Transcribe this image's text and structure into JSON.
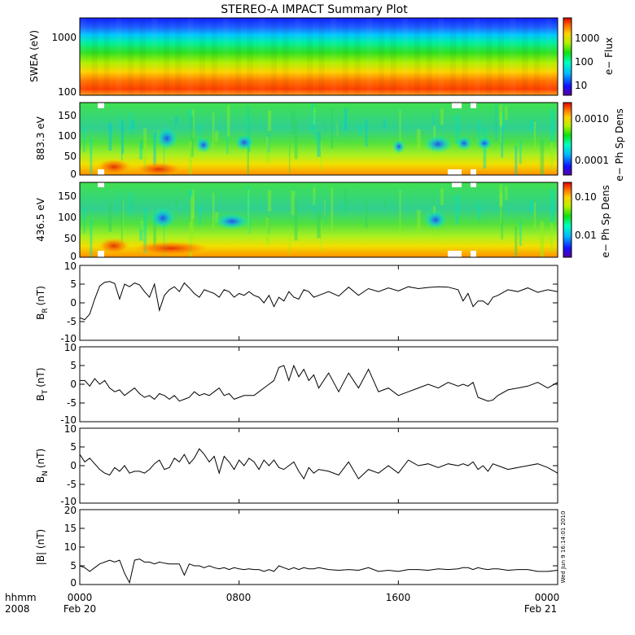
{
  "title": "STEREO-A IMPACT Summary Plot",
  "footer": {
    "hhmm_label": "hhmm",
    "year_label": "2008",
    "x_ticks": [
      "0000",
      "0800",
      "1600",
      "0000"
    ],
    "x_dates": [
      "Feb 20",
      "Feb 21"
    ]
  },
  "timestamp": "Wed Jun  9 16:14:01 2010",
  "chart_data": [
    {
      "type": "heatmap",
      "id": "swea",
      "ylabel": "SWEA (eV)",
      "yscale": "log",
      "ylim": [
        90,
        2200
      ],
      "yticks": [
        "1000",
        "100"
      ],
      "cbar_label": "e− Flux",
      "cbar_ticks": [
        "1000",
        "100",
        "10"
      ],
      "cbar_scale": "log",
      "grid": false
    },
    {
      "type": "heatmap",
      "id": "pad883",
      "ylabel": "883.3 eV",
      "ylim": [
        0,
        180
      ],
      "yticks": [
        "150",
        "100",
        "50",
        "0"
      ],
      "cbar_label": "e− Ph Sp Dens",
      "cbar_ticks": [
        "0.0010",
        "0.0001"
      ],
      "cbar_scale": "log",
      "grid": false
    },
    {
      "type": "heatmap",
      "id": "pad436",
      "ylabel": "436.5 eV",
      "ylim": [
        0,
        180
      ],
      "yticks": [
        "150",
        "100",
        "50",
        "0"
      ],
      "cbar_label": "e− Ph Sp Dens",
      "cbar_ticks": [
        "0.10",
        "0.01"
      ],
      "cbar_scale": "log",
      "grid": false
    },
    {
      "type": "line",
      "id": "br",
      "ylabel": "B",
      "ylabel_sub": "R",
      "ylabel_unit": "(nT)",
      "ylim": [
        -10,
        10
      ],
      "yticks": [
        "10",
        "5",
        "0",
        "-5",
        "-10"
      ],
      "x_hours": [
        0,
        0.25,
        0.5,
        0.75,
        1,
        1.25,
        1.5,
        1.75,
        2,
        2.25,
        2.5,
        2.75,
        3,
        3.25,
        3.5,
        3.75,
        4,
        4.25,
        4.5,
        4.75,
        5,
        5.25,
        5.5,
        5.75,
        6,
        6.25,
        6.5,
        6.75,
        7,
        7.25,
        7.5,
        7.75,
        8,
        8.25,
        8.5,
        8.75,
        9,
        9.25,
        9.5,
        9.75,
        10,
        10.25,
        10.5,
        10.75,
        11,
        11.25,
        11.5,
        11.75,
        12,
        12.5,
        13,
        13.5,
        14,
        14.5,
        15,
        15.5,
        16,
        16.5,
        17,
        17.5,
        18,
        18.5,
        19,
        19.25,
        19.5,
        19.75,
        20,
        20.25,
        20.5,
        20.75,
        21,
        21.5,
        22,
        22.5,
        23,
        23.5,
        24
      ],
      "values": [
        -4,
        -4.5,
        -3,
        1,
        4.5,
        5.5,
        5.7,
        5.2,
        1,
        5,
        4.3,
        5.3,
        4.8,
        3,
        1.5,
        5,
        -2,
        2,
        3.5,
        4.3,
        3,
        5.3,
        4,
        2.5,
        1.5,
        3.5,
        3,
        2.5,
        1.5,
        3.5,
        3,
        1.5,
        2.5,
        2,
        3,
        2,
        1.5,
        0,
        2,
        -1,
        1.5,
        0.5,
        3,
        1.5,
        1,
        3.5,
        3,
        1.5,
        2,
        3,
        1.8,
        4.2,
        2,
        3.8,
        3,
        4,
        3.2,
        4.3,
        3.8,
        4.1,
        4.3,
        4.2,
        3.5,
        0.5,
        2.5,
        -1,
        0.5,
        0.5,
        -0.5,
        1.5,
        2,
        3.5,
        3,
        4,
        2.8,
        3.5,
        3
      ]
    },
    {
      "type": "line",
      "id": "bt",
      "ylabel": "B",
      "ylabel_sub": "T",
      "ylabel_unit": "(nT)",
      "ylim": [
        -10,
        10
      ],
      "yticks": [
        "10",
        "5",
        "0",
        "-5",
        "-10"
      ],
      "x_hours": [
        0,
        0.25,
        0.5,
        0.75,
        1,
        1.25,
        1.5,
        1.75,
        2,
        2.25,
        2.5,
        2.75,
        3,
        3.25,
        3.5,
        3.75,
        4,
        4.25,
        4.5,
        4.75,
        5,
        5.25,
        5.5,
        5.75,
        6,
        6.25,
        6.5,
        6.75,
        7,
        7.25,
        7.5,
        7.75,
        8,
        8.25,
        8.5,
        8.75,
        9,
        9.25,
        9.5,
        9.75,
        10,
        10.25,
        10.5,
        10.75,
        11,
        11.25,
        11.5,
        11.75,
        12,
        12.5,
        13,
        13.5,
        14,
        14.5,
        15,
        15.5,
        16,
        16.5,
        17,
        17.5,
        18,
        18.5,
        19,
        19.25,
        19.5,
        19.75,
        20,
        20.25,
        20.5,
        20.75,
        21,
        21.5,
        22,
        22.5,
        23,
        23.5,
        24
      ],
      "values": [
        1,
        1,
        -0.5,
        1.5,
        0,
        1,
        -1,
        -2,
        -1.5,
        -3,
        -2,
        -1,
        -2.5,
        -3.5,
        -3,
        -4,
        -2.5,
        -3,
        -4,
        -3,
        -4.5,
        -4,
        -3.5,
        -2,
        -3,
        -2.5,
        -3,
        -2,
        -1,
        -3,
        -2.5,
        -4,
        -3.5,
        -3,
        -3,
        -3,
        -2,
        -1,
        0,
        1,
        4.5,
        5,
        1,
        5,
        2,
        4,
        1,
        2.5,
        -1,
        3,
        -2,
        3,
        -1,
        4,
        -2,
        -1,
        -3,
        -2,
        -1,
        0,
        -1,
        0.5,
        -0.5,
        0,
        -0.5,
        0.5,
        -3.5,
        -4,
        -4.5,
        -4.2,
        -3,
        -1.5,
        -1,
        -0.5,
        0.5,
        -1,
        0.5
      ]
    },
    {
      "type": "line",
      "id": "bn",
      "ylabel": "B",
      "ylabel_sub": "N",
      "ylabel_unit": "(nT)",
      "ylim": [
        -10,
        10
      ],
      "yticks": [
        "10",
        "5",
        "0",
        "-5",
        "-10"
      ],
      "x_hours": [
        0,
        0.25,
        0.5,
        0.75,
        1,
        1.25,
        1.5,
        1.75,
        2,
        2.25,
        2.5,
        2.75,
        3,
        3.25,
        3.5,
        3.75,
        4,
        4.25,
        4.5,
        4.75,
        5,
        5.25,
        5.5,
        5.75,
        6,
        6.25,
        6.5,
        6.75,
        7,
        7.25,
        7.5,
        7.75,
        8,
        8.25,
        8.5,
        8.75,
        9,
        9.25,
        9.5,
        9.75,
        10,
        10.25,
        10.5,
        10.75,
        11,
        11.25,
        11.5,
        11.75,
        12,
        12.5,
        13,
        13.5,
        14,
        14.5,
        15,
        15.5,
        16,
        16.5,
        17,
        17.5,
        18,
        18.5,
        19,
        19.25,
        19.5,
        19.75,
        20,
        20.25,
        20.5,
        20.75,
        21,
        21.5,
        22,
        22.5,
        23,
        23.5,
        24
      ],
      "values": [
        3,
        1,
        2,
        0.5,
        -1,
        -2,
        -2.5,
        -0.5,
        -1.5,
        0,
        -2,
        -1.5,
        -1.5,
        -2,
        -1,
        0.5,
        1.5,
        -1,
        -0.5,
        2,
        1,
        3,
        0.5,
        2,
        4.5,
        3,
        1,
        2.5,
        -2,
        2.5,
        1,
        -1,
        1.5,
        0,
        2,
        1,
        -1,
        1.5,
        0,
        1.5,
        -0.5,
        -1,
        0,
        1,
        -1.5,
        -3.5,
        -0.5,
        -2,
        -1,
        -1.5,
        -2.5,
        1,
        -3.5,
        -1,
        -2,
        0,
        -2,
        1.5,
        0,
        0.5,
        -0.5,
        0.5,
        0,
        0.5,
        0,
        1,
        -1,
        0,
        -1.5,
        0.5,
        0,
        -1,
        -0.5,
        0,
        0.5,
        -0.5,
        -2
      ]
    },
    {
      "type": "line",
      "id": "bmag",
      "ylabel": "|B| (nT)",
      "ylim": [
        0,
        20
      ],
      "yticks": [
        "20",
        "15",
        "10",
        "5",
        "0"
      ],
      "x_hours": [
        0,
        0.25,
        0.5,
        0.75,
        1,
        1.25,
        1.5,
        1.75,
        2,
        2.25,
        2.5,
        2.75,
        3,
        3.25,
        3.5,
        3.75,
        4,
        4.25,
        4.5,
        4.75,
        5,
        5.25,
        5.5,
        5.75,
        6,
        6.25,
        6.5,
        6.75,
        7,
        7.25,
        7.5,
        7.75,
        8,
        8.25,
        8.5,
        8.75,
        9,
        9.25,
        9.5,
        9.75,
        10,
        10.25,
        10.5,
        10.75,
        11,
        11.25,
        11.5,
        11.75,
        12,
        12.5,
        13,
        13.5,
        14,
        14.5,
        15,
        15.5,
        16,
        16.5,
        17,
        17.5,
        18,
        18.5,
        19,
        19.25,
        19.5,
        19.75,
        20,
        20.25,
        20.5,
        20.75,
        21,
        21.5,
        22,
        22.5,
        23,
        23.5,
        24
      ],
      "values": [
        5,
        4.5,
        3.5,
        4.5,
        5.5,
        6,
        6.5,
        6,
        6.5,
        3,
        0.5,
        6.5,
        6.8,
        6,
        6,
        5.5,
        6,
        5.7,
        5.5,
        5.5,
        5.5,
        2.5,
        5.5,
        5,
        5,
        4.5,
        5,
        4.5,
        4.2,
        4.5,
        4,
        4.5,
        4.2,
        4,
        4.2,
        4,
        4,
        3.5,
        4,
        3.5,
        5,
        4.5,
        4,
        4.5,
        4,
        4.5,
        4.2,
        4.2,
        4.5,
        4,
        3.8,
        4,
        3.8,
        4.5,
        3.5,
        3.8,
        3.5,
        4,
        4,
        3.8,
        4.2,
        4,
        4.2,
        4.5,
        4.5,
        4,
        4.5,
        4.2,
        4,
        4.2,
        4.2,
        3.8,
        4,
        4,
        3.5,
        3.5,
        3.8
      ]
    }
  ]
}
